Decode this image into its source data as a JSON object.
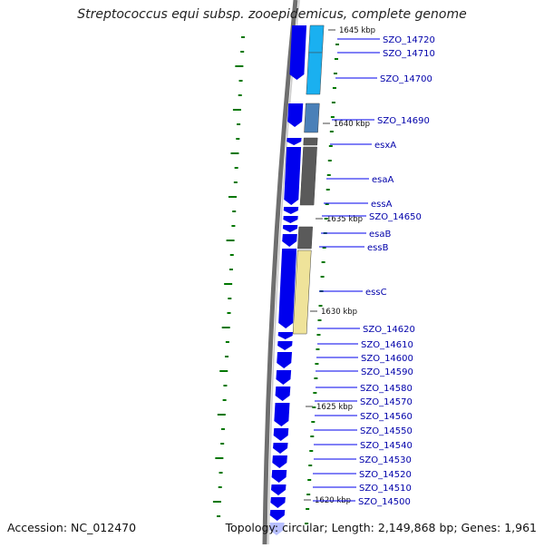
{
  "title": "Streptococcus equi subsp. zooepidemicus, complete genome",
  "accession": "Accession: NC_012470",
  "summary": "Topology: circular; Length: 2,149,868 bp; Genes: 1,961",
  "colors": {
    "forward_gene": "#0000ee",
    "gene_lightblue": "#1ab0f0",
    "gene_steelblue": "#4a80b8",
    "gene_gray": "#5a5a5a",
    "gene_tan": "#efe39a",
    "backbone": "#707070",
    "label_text": "#0000aa",
    "gc_tick": "#007700"
  },
  "scale_ticks": [
    {
      "label": "1645 kbp"
    },
    {
      "label": "1640 kbp"
    },
    {
      "label": "1635 kbp"
    },
    {
      "label": "1630 kbp"
    },
    {
      "label": "1625 kbp"
    },
    {
      "label": "1620 kbp"
    }
  ],
  "gene_labels": [
    {
      "text": "SZO_14720"
    },
    {
      "text": "SZO_14710"
    },
    {
      "text": "SZO_14700"
    },
    {
      "text": "SZO_14690"
    },
    {
      "text": "esxA"
    },
    {
      "text": "esaA"
    },
    {
      "text": "essA"
    },
    {
      "text": "SZO_14650"
    },
    {
      "text": "esaB"
    },
    {
      "text": "essB"
    },
    {
      "text": "essC"
    },
    {
      "text": "SZO_14620"
    },
    {
      "text": "SZO_14610"
    },
    {
      "text": "SZO_14600"
    },
    {
      "text": "SZO_14590"
    },
    {
      "text": "SZO_14580"
    },
    {
      "text": "SZO_14570"
    },
    {
      "text": "SZO_14560"
    },
    {
      "text": "SZO_14550"
    },
    {
      "text": "SZO_14540"
    },
    {
      "text": "SZO_14530"
    },
    {
      "text": "SZO_14520"
    },
    {
      "text": "SZO_14510"
    },
    {
      "text": "SZO_14500"
    }
  ]
}
